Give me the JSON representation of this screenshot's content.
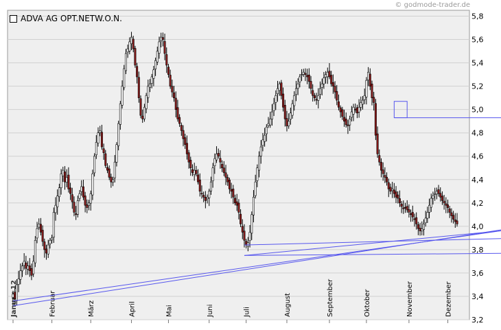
{
  "credit": "© godmode-trader.de",
  "legend": {
    "label": "ADVA AG OPT.NETW.O.N."
  },
  "colors": {
    "up": "#ffffff",
    "down": "#8b1a1a",
    "wick": "#000000",
    "trendline": "#5555ee",
    "plot_bg": "#efefef",
    "grid": "#d0d0d0"
  },
  "chart_data": {
    "type": "candlestick",
    "x_labels": [
      "Januar 12",
      "Februar",
      "März",
      "April",
      "Mai",
      "Juni",
      "Juli",
      "August",
      "September",
      "Oktober",
      "November",
      "Dezember"
    ],
    "y_ticks": [
      "5,8",
      "5,6",
      "5,4",
      "5,2",
      "5,0",
      "4,8",
      "4,6",
      "4,4",
      "4,2",
      "4,0",
      "3,8",
      "3,6",
      "3,4",
      "3,2"
    ],
    "y_tick_values": [
      5.8,
      5.6,
      5.4,
      5.2,
      5.0,
      4.8,
      4.6,
      4.4,
      4.2,
      4.0,
      3.8,
      3.6,
      3.4,
      3.2
    ],
    "ylim": [
      3.2,
      5.85
    ],
    "months_index": [
      0,
      21,
      42,
      64,
      84,
      106,
      126,
      148,
      171,
      191,
      214,
      235
    ],
    "closes": [
      3.42,
      3.38,
      3.5,
      3.55,
      3.62,
      3.66,
      3.7,
      3.64,
      3.66,
      3.62,
      3.58,
      3.7,
      3.88,
      3.98,
      4.02,
      3.95,
      3.87,
      3.8,
      3.77,
      3.84,
      3.88,
      3.9,
      4.12,
      4.18,
      4.26,
      4.33,
      4.45,
      4.48,
      4.38,
      4.42,
      4.32,
      4.28,
      4.21,
      4.12,
      4.1,
      4.22,
      4.28,
      4.34,
      4.25,
      4.18,
      4.16,
      4.2,
      4.28,
      4.45,
      4.6,
      4.72,
      4.8,
      4.82,
      4.68,
      4.63,
      4.52,
      4.48,
      4.42,
      4.38,
      4.4,
      4.55,
      4.7,
      4.88,
      5.05,
      5.2,
      5.35,
      5.48,
      5.52,
      5.58,
      5.62,
      5.52,
      5.38,
      5.28,
      5.1,
      4.95,
      4.92,
      5.02,
      5.12,
      5.2,
      5.22,
      5.28,
      5.34,
      5.42,
      5.5,
      5.58,
      5.62,
      5.6,
      5.48,
      5.38,
      5.3,
      5.2,
      5.15,
      5.1,
      5.0,
      4.92,
      4.88,
      4.82,
      4.75,
      4.7,
      4.62,
      4.55,
      4.5,
      4.46,
      4.48,
      4.45,
      4.38,
      4.3,
      4.28,
      4.25,
      4.22,
      4.25,
      4.3,
      4.38,
      4.5,
      4.58,
      4.62,
      4.6,
      4.55,
      4.5,
      4.46,
      4.42,
      4.38,
      4.32,
      4.3,
      4.25,
      4.2,
      4.18,
      4.12,
      4.02,
      3.95,
      3.88,
      3.84,
      3.86,
      3.95,
      4.1,
      4.25,
      4.38,
      4.5,
      4.6,
      4.68,
      4.74,
      4.78,
      4.85,
      4.88,
      4.92,
      4.98,
      5.05,
      5.12,
      5.18,
      5.22,
      5.12,
      5.02,
      4.92,
      4.86,
      4.9,
      4.97,
      5.05,
      5.12,
      5.18,
      5.22,
      5.28,
      5.3,
      5.32,
      5.3,
      5.28,
      5.24,
      5.18,
      5.12,
      5.1,
      5.08,
      5.12,
      5.18,
      5.22,
      5.27,
      5.3,
      5.32,
      5.28,
      5.22,
      5.2,
      5.15,
      5.08,
      5.02,
      4.98,
      4.94,
      4.9,
      4.87,
      4.86,
      4.92,
      4.98,
      5.02,
      5.0,
      4.97,
      5.02,
      5.06,
      5.08,
      5.12,
      5.25,
      5.32,
      5.2,
      5.1,
      5.06,
      4.78,
      4.62,
      4.55,
      4.48,
      4.45,
      4.42,
      4.38,
      4.32,
      4.3,
      4.32,
      4.28,
      4.25,
      4.24,
      4.2,
      4.17,
      4.15,
      4.16,
      4.14,
      4.12,
      4.1,
      4.08,
      4.06,
      4.02,
      3.98,
      3.96,
      3.98,
      4.02,
      4.07,
      4.12,
      4.18,
      4.24,
      4.26,
      4.28,
      4.3,
      4.28,
      4.25,
      4.22,
      4.2,
      4.18,
      4.16,
      4.12,
      4.09,
      4.06,
      4.04,
      4.02
    ],
    "trend_lines": [
      {
        "from": [
          0,
          3.32
        ],
        "to": [
          276,
          4.0
        ]
      },
      {
        "from": [
          0,
          3.36
        ],
        "to": [
          276,
          3.99
        ]
      },
      {
        "from": [
          125,
          3.75
        ],
        "to": [
          276,
          3.98
        ]
      },
      {
        "from": [
          125,
          3.75
        ],
        "to": [
          276,
          3.77
        ]
      },
      {
        "from": [
          125,
          3.84
        ],
        "to": [
          276,
          3.9
        ]
      },
      {
        "from": [
          206,
          4.93
        ],
        "to": [
          276,
          4.93
        ]
      }
    ],
    "boxes": [
      {
        "x0": 206,
        "x1": 213,
        "y_top": 5.07,
        "y_bottom": 4.93
      }
    ]
  }
}
